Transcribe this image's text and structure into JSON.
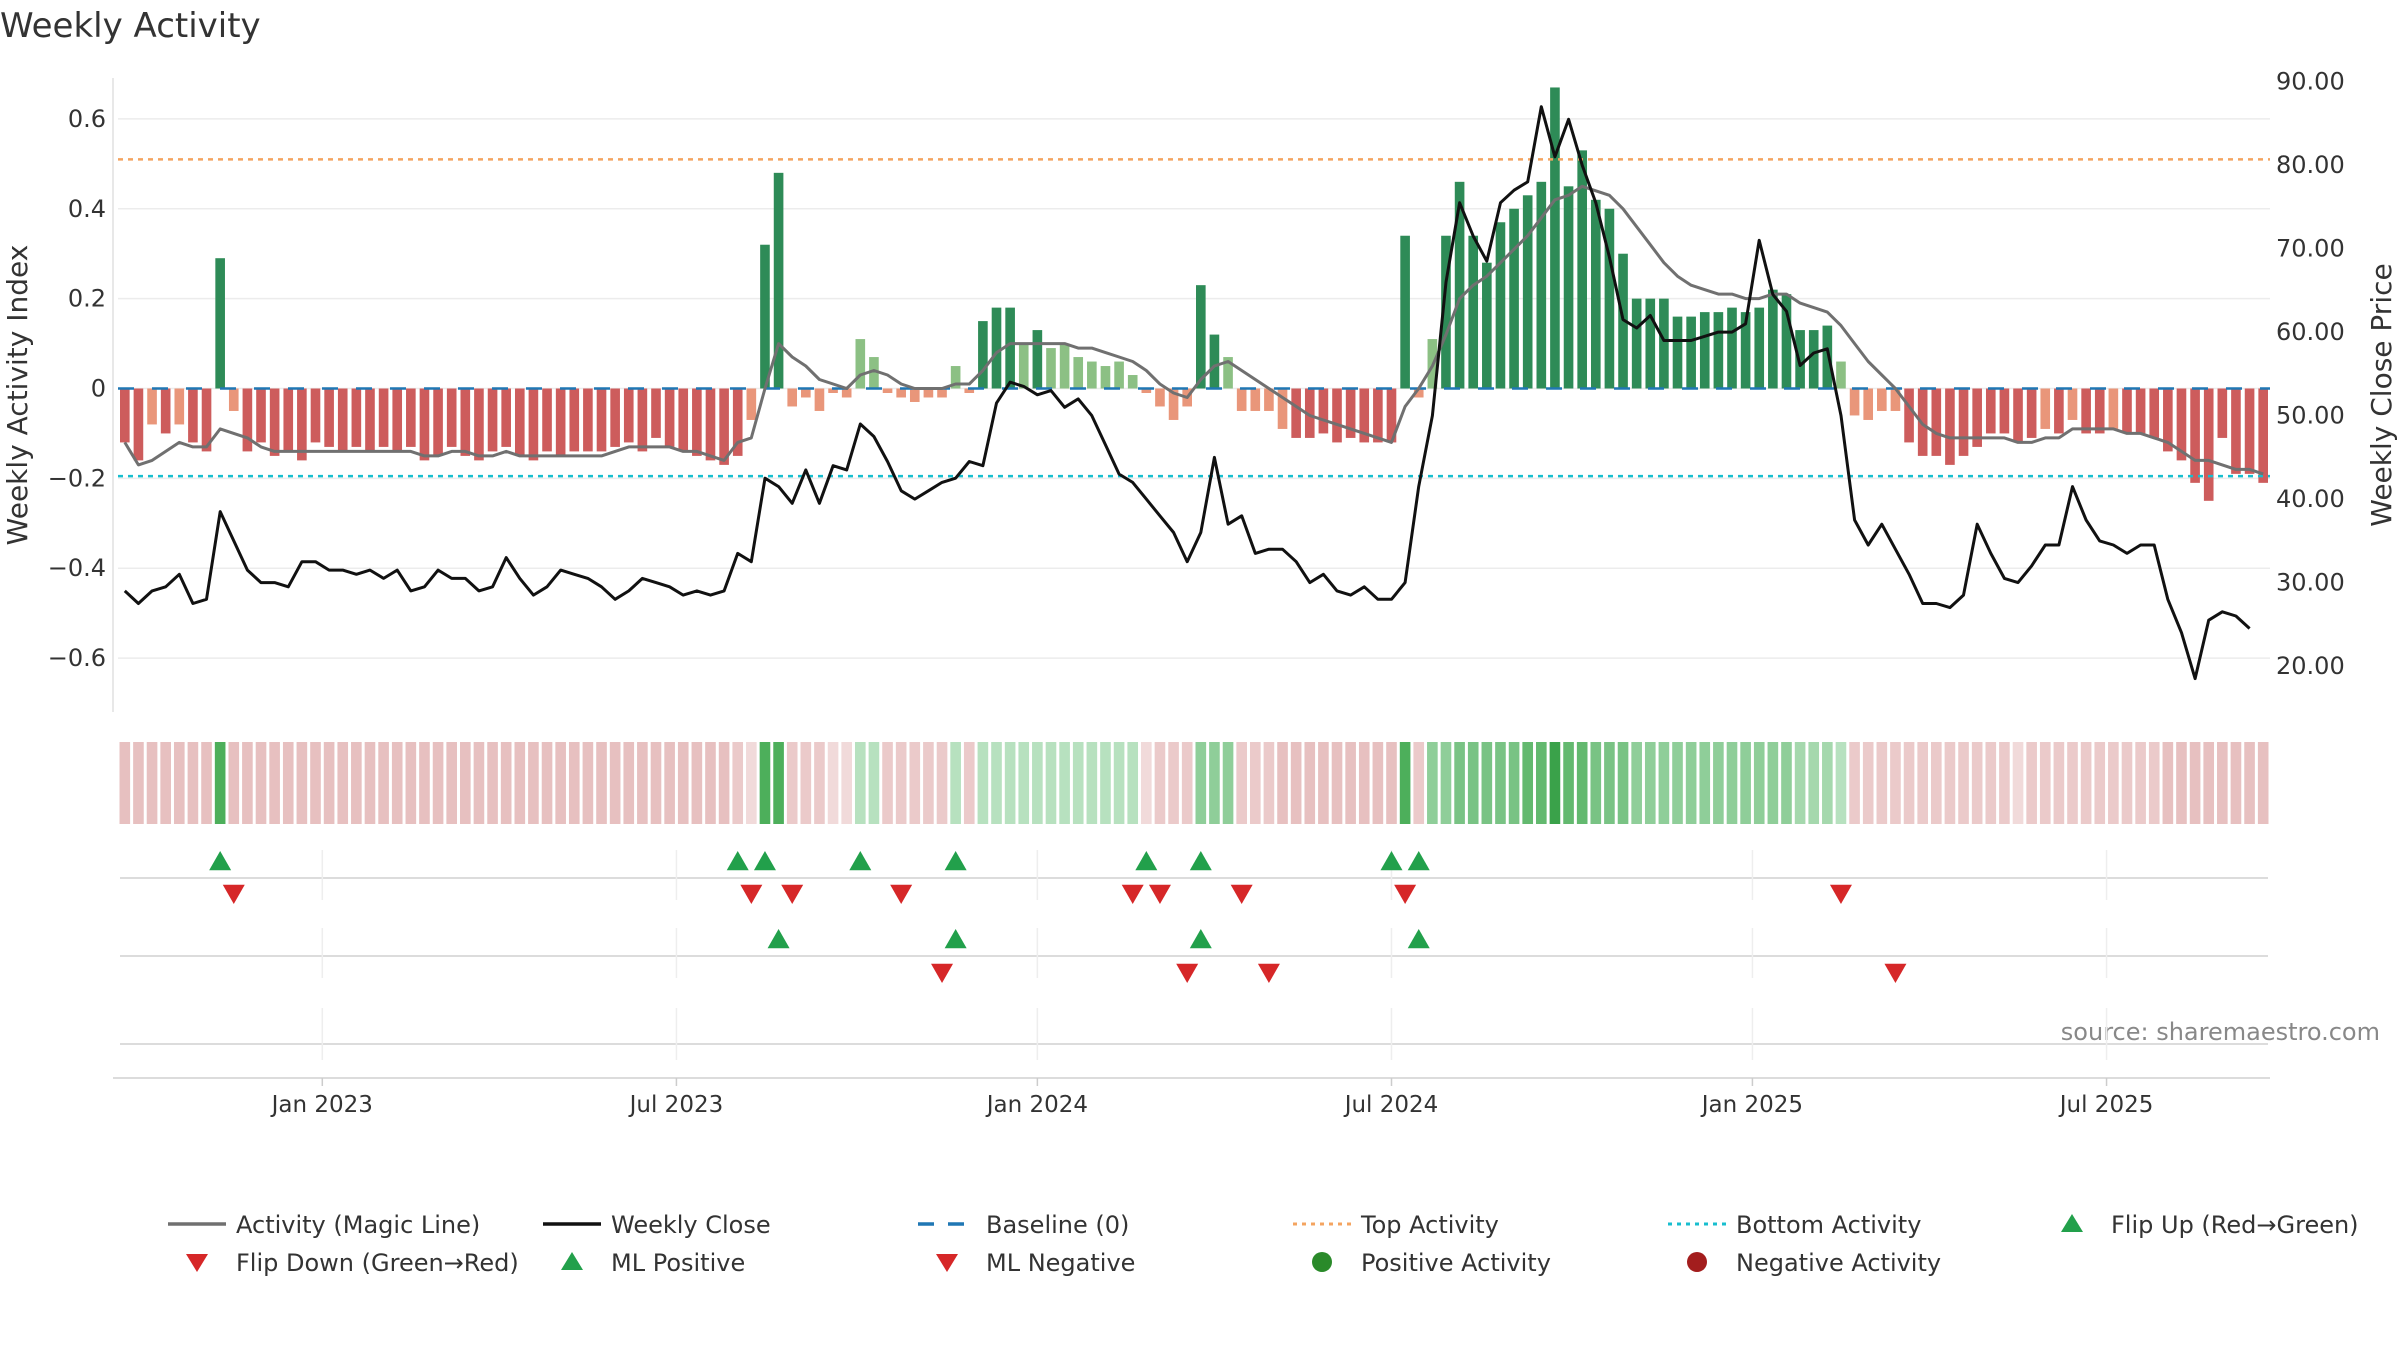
{
  "chart_data": {
    "type": "bar",
    "title": "Weekly Activity",
    "ylabel": "Weekly Activity Index",
    "y2label": "Weekly Close Price",
    "source": "source: sharemaestro.com",
    "ylim": [
      -0.72,
      0.72
    ],
    "y2lim": [
      14.5,
      92.0
    ],
    "yticks": [
      0.6,
      0.4,
      0.2,
      0,
      -0.2,
      -0.4,
      -0.6
    ],
    "ytick_labels": [
      "0.6",
      "0.4",
      "0.2",
      "0",
      "−0.2",
      "−0.4",
      "−0.6"
    ],
    "y2ticks": [
      90,
      80,
      70,
      60,
      50,
      40,
      30,
      20
    ],
    "y2tick_labels": [
      "90.00",
      "80.00",
      "70.00",
      "60.00",
      "50.00",
      "40.00",
      "30.00",
      "20.00"
    ],
    "xticks": [
      {
        "label": "Jan 2023",
        "week": 15
      },
      {
        "label": "Jul 2023",
        "week": 41
      },
      {
        "label": "Jan 2024",
        "week": 67.5
      },
      {
        "label": "Jul 2024",
        "week": 93.5
      },
      {
        "label": "Jan 2025",
        "week": 120
      },
      {
        "label": "Jul 2025",
        "week": 146
      }
    ],
    "top_activity": 0.51,
    "bottom_activity": -0.195,
    "baseline": 0,
    "activity": [
      -0.12,
      -0.16,
      -0.08,
      -0.1,
      -0.08,
      -0.12,
      -0.14,
      0.29,
      -0.05,
      -0.14,
      -0.12,
      -0.15,
      -0.14,
      -0.16,
      -0.12,
      -0.13,
      -0.14,
      -0.13,
      -0.14,
      -0.13,
      -0.14,
      -0.13,
      -0.16,
      -0.15,
      -0.13,
      -0.15,
      -0.16,
      -0.14,
      -0.13,
      -0.15,
      -0.16,
      -0.14,
      -0.15,
      -0.14,
      -0.14,
      -0.14,
      -0.13,
      -0.12,
      -0.14,
      -0.11,
      -0.13,
      -0.14,
      -0.15,
      -0.16,
      -0.17,
      -0.15,
      -0.07,
      0.32,
      0.48,
      -0.04,
      -0.02,
      -0.05,
      -0.01,
      -0.02,
      0.11,
      0.07,
      -0.01,
      -0.02,
      -0.03,
      -0.02,
      -0.02,
      0.05,
      -0.01,
      0.15,
      0.18,
      0.18,
      0.1,
      0.13,
      0.09,
      0.1,
      0.07,
      0.06,
      0.05,
      0.06,
      0.03,
      -0.01,
      -0.04,
      -0.07,
      -0.04,
      0.23,
      0.12,
      0.07,
      -0.05,
      -0.05,
      -0.05,
      -0.09,
      -0.11,
      -0.11,
      -0.1,
      -0.12,
      -0.11,
      -0.12,
      -0.12,
      -0.12,
      0.34,
      -0.02,
      0.11,
      0.34,
      0.46,
      0.34,
      0.28,
      0.37,
      0.4,
      0.43,
      0.46,
      0.67,
      0.45,
      0.53,
      0.42,
      0.4,
      0.3,
      0.2,
      0.2,
      0.2,
      0.16,
      0.16,
      0.17,
      0.17,
      0.18,
      0.17,
      0.18,
      0.22,
      0.21,
      0.13,
      0.13,
      0.14,
      0.06,
      -0.06,
      -0.07,
      -0.05,
      -0.05,
      -0.12,
      -0.15,
      -0.15,
      -0.17,
      -0.15,
      -0.13,
      -0.1,
      -0.1,
      -0.12,
      -0.11,
      -0.09,
      -0.1,
      -0.07,
      -0.1,
      -0.1,
      -0.09,
      -0.1,
      -0.1,
      -0.11,
      -0.14,
      -0.16,
      -0.21,
      -0.25,
      -0.11,
      -0.19,
      -0.19,
      -0.21
    ],
    "magic_line": [
      -0.12,
      -0.17,
      -0.16,
      -0.14,
      -0.12,
      -0.13,
      -0.13,
      -0.09,
      -0.1,
      -0.11,
      -0.13,
      -0.14,
      -0.14,
      -0.14,
      -0.14,
      -0.14,
      -0.14,
      -0.14,
      -0.14,
      -0.14,
      -0.14,
      -0.14,
      -0.15,
      -0.15,
      -0.14,
      -0.14,
      -0.15,
      -0.15,
      -0.14,
      -0.15,
      -0.15,
      -0.15,
      -0.15,
      -0.15,
      -0.15,
      -0.15,
      -0.14,
      -0.13,
      -0.13,
      -0.13,
      -0.13,
      -0.14,
      -0.14,
      -0.15,
      -0.16,
      -0.12,
      -0.11,
      0.0,
      0.1,
      0.07,
      0.05,
      0.02,
      0.01,
      0.0,
      0.03,
      0.04,
      0.03,
      0.01,
      0.0,
      0.0,
      0.0,
      0.01,
      0.01,
      0.04,
      0.08,
      0.1,
      0.1,
      0.1,
      0.1,
      0.1,
      0.09,
      0.09,
      0.08,
      0.07,
      0.06,
      0.04,
      0.01,
      -0.01,
      -0.02,
      0.02,
      0.05,
      0.06,
      0.04,
      0.02,
      0.0,
      -0.02,
      -0.04,
      -0.06,
      -0.07,
      -0.08,
      -0.09,
      -0.1,
      -0.11,
      -0.12,
      -0.04,
      0.0,
      0.05,
      0.12,
      0.2,
      0.23,
      0.25,
      0.28,
      0.31,
      0.34,
      0.38,
      0.42,
      0.43,
      0.45,
      0.44,
      0.43,
      0.4,
      0.36,
      0.32,
      0.28,
      0.25,
      0.23,
      0.22,
      0.21,
      0.21,
      0.2,
      0.2,
      0.21,
      0.21,
      0.19,
      0.18,
      0.17,
      0.14,
      0.1,
      0.06,
      0.03,
      0.0,
      -0.04,
      -0.08,
      -0.1,
      -0.11,
      -0.11,
      -0.11,
      -0.11,
      -0.11,
      -0.12,
      -0.12,
      -0.11,
      -0.11,
      -0.09,
      -0.09,
      -0.09,
      -0.09,
      -0.1,
      -0.1,
      -0.11,
      -0.12,
      -0.14,
      -0.16,
      -0.16,
      -0.17,
      -0.18,
      -0.18,
      -0.19
    ],
    "close": [
      29.0,
      27.5,
      29.0,
      29.5,
      31.0,
      27.5,
      28.0,
      38.5,
      35.0,
      31.5,
      30.0,
      30.0,
      29.5,
      32.5,
      32.5,
      31.5,
      31.5,
      31.0,
      31.5,
      30.5,
      31.5,
      29.0,
      29.5,
      31.5,
      30.5,
      30.5,
      29.0,
      29.5,
      33.0,
      30.5,
      28.5,
      29.5,
      31.5,
      31.0,
      30.5,
      29.5,
      28.0,
      29.0,
      30.5,
      30.0,
      29.5,
      28.5,
      29.0,
      28.5,
      29.0,
      33.5,
      32.5,
      42.5,
      41.5,
      39.5,
      43.5,
      39.5,
      44.0,
      43.5,
      49.0,
      47.5,
      44.5,
      41.0,
      40.0,
      41.0,
      42.0,
      42.5,
      44.5,
      44.0,
      51.5,
      54.0,
      53.5,
      52.5,
      53.0,
      51.0,
      52.0,
      50.0,
      46.5,
      43.0,
      42.0,
      40.0,
      38.0,
      36.0,
      32.5,
      36.0,
      45.0,
      37.0,
      38.0,
      33.5,
      34.0,
      34.0,
      32.5,
      30.0,
      31.0,
      29.0,
      28.5,
      29.5,
      28.0,
      28.0,
      30.0,
      41.5,
      50.0,
      66.0,
      75.5,
      71.5,
      68.5,
      75.5,
      77.0,
      78.0,
      87.0,
      81.0,
      85.5,
      80.0,
      75.5,
      69.0,
      61.5,
      60.5,
      62.0,
      59.0,
      59.0,
      59.0,
      59.5,
      60.0,
      60.0,
      61.0,
      71.0,
      64.5,
      62.5,
      56.0,
      57.5,
      58.0,
      50.0,
      37.5,
      34.5,
      37.0,
      34.0,
      31.0,
      27.5,
      27.5,
      27.0,
      28.5,
      37.0,
      33.5,
      30.5,
      30.0,
      32.0,
      34.5,
      34.5,
      41.5,
      37.5,
      35.0,
      34.5,
      33.5,
      34.5,
      34.5,
      28.0,
      24.0,
      18.5,
      25.5,
      26.5,
      26.0,
      24.5
    ],
    "heat_intensity": [
      3,
      3,
      3,
      3,
      3,
      3,
      3,
      7,
      3,
      3,
      3,
      3,
      3,
      3,
      3,
      3,
      3,
      3,
      3,
      3,
      3,
      3,
      3,
      3,
      3,
      3,
      3,
      3,
      3,
      3,
      3,
      3,
      3,
      3,
      3,
      3,
      3,
      3,
      3,
      3,
      3,
      3,
      3,
      3,
      3,
      2,
      1,
      7,
      7,
      2,
      2,
      2,
      1,
      1,
      2,
      2,
      2,
      2,
      2,
      2,
      2,
      2,
      2,
      2,
      2,
      2,
      2,
      2,
      2,
      2,
      2,
      2,
      2,
      2,
      2,
      1,
      2,
      2,
      2,
      4,
      4,
      4,
      2,
      2,
      2,
      3,
      3,
      3,
      3,
      3,
      3,
      3,
      3,
      3,
      7,
      2,
      4,
      4,
      5,
      5,
      5,
      5,
      5,
      6,
      6,
      8,
      6,
      6,
      5,
      5,
      5,
      4,
      4,
      4,
      4,
      4,
      4,
      4,
      4,
      4,
      4,
      4,
      4,
      3,
      3,
      3,
      2,
      2,
      2,
      2,
      2,
      2,
      2,
      2,
      2,
      2,
      2,
      2,
      2,
      1,
      2,
      2,
      2,
      2,
      2,
      2,
      2,
      2,
      2,
      2,
      3,
      3,
      3,
      3,
      3,
      3,
      3,
      3
    ],
    "flip_up": [
      7,
      45,
      47,
      54,
      61,
      75,
      79,
      93,
      95
    ],
    "flip_down": [
      8,
      46,
      49,
      57,
      74,
      76,
      82,
      94,
      126
    ],
    "ml_positive": [
      48,
      61,
      79,
      95
    ],
    "ml_negative": [
      60,
      78,
      84,
      130
    ],
    "legend": [
      {
        "label": "Activity (Magic Line)",
        "kind": "solid-line",
        "color": "#707070"
      },
      {
        "label": "Weekly Close",
        "kind": "solid-line",
        "color": "#111111"
      },
      {
        "label": "Baseline (0)",
        "kind": "dashed-line",
        "color": "#1f77b4"
      },
      {
        "label": "Top Activity",
        "kind": "dotted-line",
        "color": "#f4a460"
      },
      {
        "label": "Bottom Activity",
        "kind": "dotted-line",
        "color": "#17becf"
      },
      {
        "label": "Flip Up (Red→Green)",
        "kind": "triangle-up",
        "color": "#22a04b"
      },
      {
        "label": "Flip Down (Green→Red)",
        "kind": "triangle-down",
        "color": "#d62728"
      },
      {
        "label": "ML Positive",
        "kind": "triangle-up",
        "color": "#22a04b"
      },
      {
        "label": "ML Negative",
        "kind": "triangle-down",
        "color": "#d62728"
      },
      {
        "label": "Positive Activity",
        "kind": "dot",
        "color": "#2a8a2a"
      },
      {
        "label": "Negative Activity",
        "kind": "dot",
        "color": "#a31d1d"
      }
    ],
    "colors": {
      "pos_strong": "#2e8b57",
      "pos_light": "#8cc084",
      "neg_strong": "#cd5c5c",
      "neg_light": "#e9967a",
      "magic": "#707070",
      "close": "#111111",
      "top_line": "#f4a460",
      "bottom_line": "#17becf",
      "baseline": "#1f77b4",
      "marker_up": "#22a04b",
      "marker_down": "#d62728"
    }
  }
}
